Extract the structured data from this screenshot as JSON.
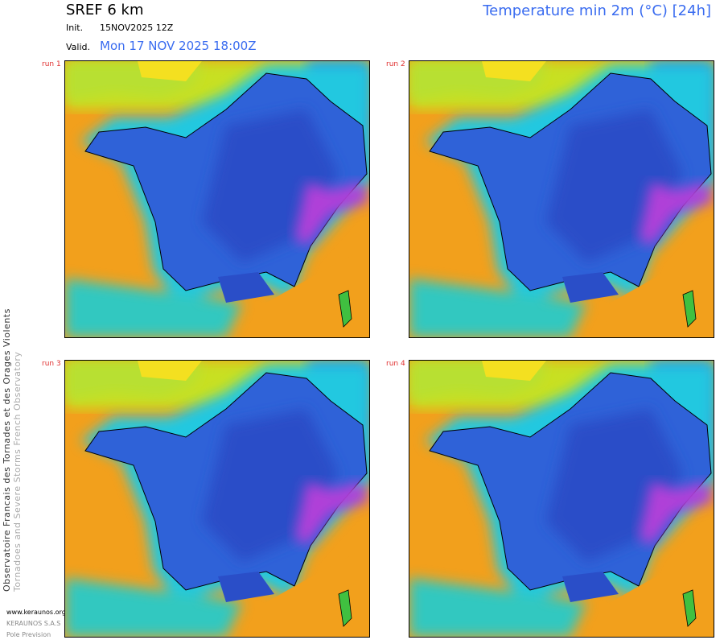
{
  "header": {
    "model": "SREF 6 km",
    "product": "Temperature min 2m (°C) [24h]",
    "init_label": "Init.",
    "init": "15NOV2025 12Z",
    "valid_label": "Valid.",
    "valid": "Mon 17 NOV 2025 18:00Z"
  },
  "panels": [
    {
      "label": "run 1"
    },
    {
      "label": "run 2"
    },
    {
      "label": "run 3"
    },
    {
      "label": "run 4"
    }
  ],
  "sidebar": {
    "organisation": "Observatoire Francais des Tornades et des Orages Violents",
    "organisation_en": "Tornadoes and Severe Storms French Observatory",
    "website": "www.keraunos.org",
    "company": "KERAUNOS S.A.S",
    "department": "Pole Prevision"
  }
}
